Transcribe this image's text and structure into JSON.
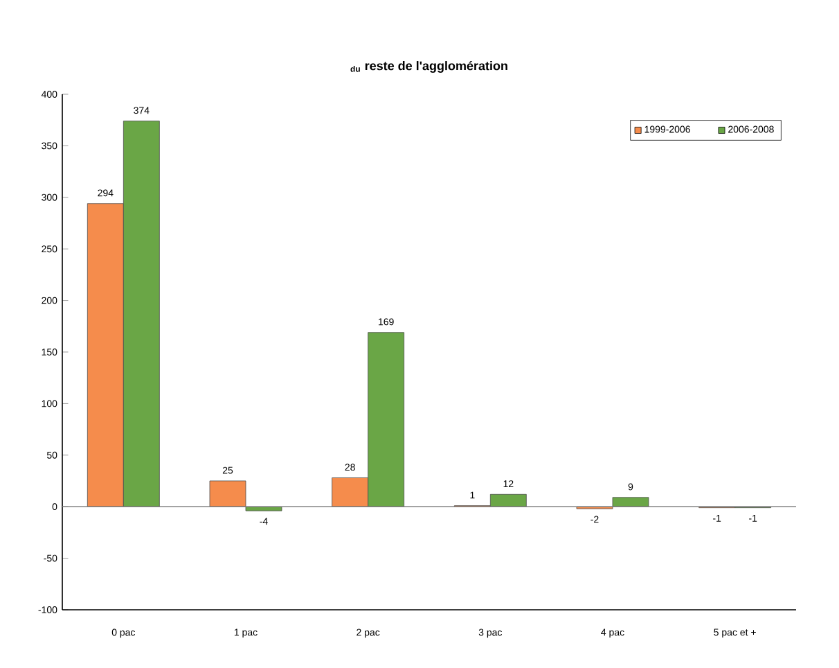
{
  "chart_data": {
    "type": "bar",
    "title": "$_{du}$ reste de l'agglomération",
    "categories": [
      "0 pac",
      "1 pac",
      "2 pac",
      "3 pac",
      "4 pac",
      "5 pac et +"
    ],
    "series": [
      {
        "name": "1999-2006",
        "color": "#f58c4c",
        "values": [
          294,
          25,
          28,
          1,
          -2,
          -1
        ]
      },
      {
        "name": "2006-2008",
        "color": "#6aa646",
        "values": [
          374,
          -4,
          169,
          12,
          9,
          -1
        ]
      }
    ],
    "ylim": [
      -100,
      400
    ],
    "yticks": [
      -100,
      -50,
      0,
      50,
      100,
      150,
      200,
      250,
      300,
      350,
      400
    ],
    "ref_lines": [
      {
        "axis": "y",
        "value": 0,
        "color": "#808080"
      }
    ],
    "data_labels": true,
    "grid": false,
    "legend": "top right"
  }
}
